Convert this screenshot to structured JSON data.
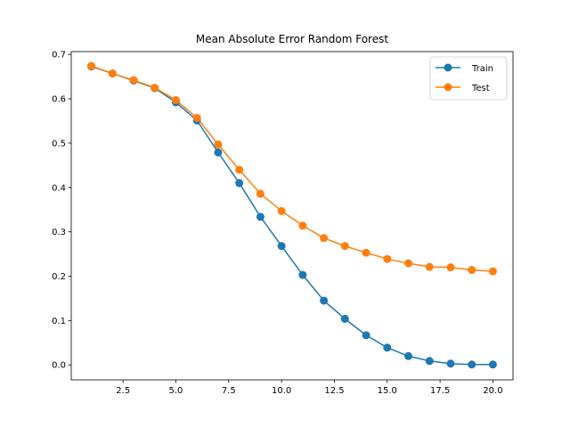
{
  "chart_data": {
    "type": "line",
    "title": "Mean Absolute Error Random Forest",
    "xlabel": "",
    "ylabel": "",
    "xlim": [
      0.05,
      20.95
    ],
    "ylim": [
      -0.0336,
      0.7064
    ],
    "x_ticks": [
      2.5,
      5.0,
      7.5,
      10.0,
      12.5,
      15.0,
      17.5,
      20.0
    ],
    "x_tick_labels": [
      "2.5",
      "5.0",
      "7.5",
      "10.0",
      "12.5",
      "15.0",
      "17.5",
      "20.0"
    ],
    "y_ticks": [
      0.0,
      0.1,
      0.2,
      0.3,
      0.4,
      0.5,
      0.6,
      0.7
    ],
    "y_tick_labels": [
      "0.0",
      "0.1",
      "0.2",
      "0.3",
      "0.4",
      "0.5",
      "0.6",
      "0.7"
    ],
    "grid": false,
    "legend_position": "top-right",
    "x": [
      1,
      2,
      3,
      4,
      5,
      6,
      7,
      8,
      9,
      10,
      11,
      12,
      13,
      14,
      15,
      16,
      17,
      18,
      19,
      20
    ],
    "series": [
      {
        "name": "Train",
        "color": "#1f77b4",
        "marker": "circle",
        "values": [
          0.673,
          0.657,
          0.641,
          0.624,
          0.592,
          0.551,
          0.479,
          0.41,
          0.334,
          0.268,
          0.203,
          0.145,
          0.104,
          0.067,
          0.039,
          0.02,
          0.009,
          0.003,
          0.001,
          0.001
        ]
      },
      {
        "name": "Test",
        "color": "#ff7f0e",
        "marker": "circle",
        "values": [
          0.674,
          0.657,
          0.642,
          0.625,
          0.597,
          0.557,
          0.497,
          0.44,
          0.386,
          0.347,
          0.314,
          0.286,
          0.268,
          0.253,
          0.239,
          0.229,
          0.221,
          0.22,
          0.214,
          0.211
        ]
      }
    ]
  }
}
